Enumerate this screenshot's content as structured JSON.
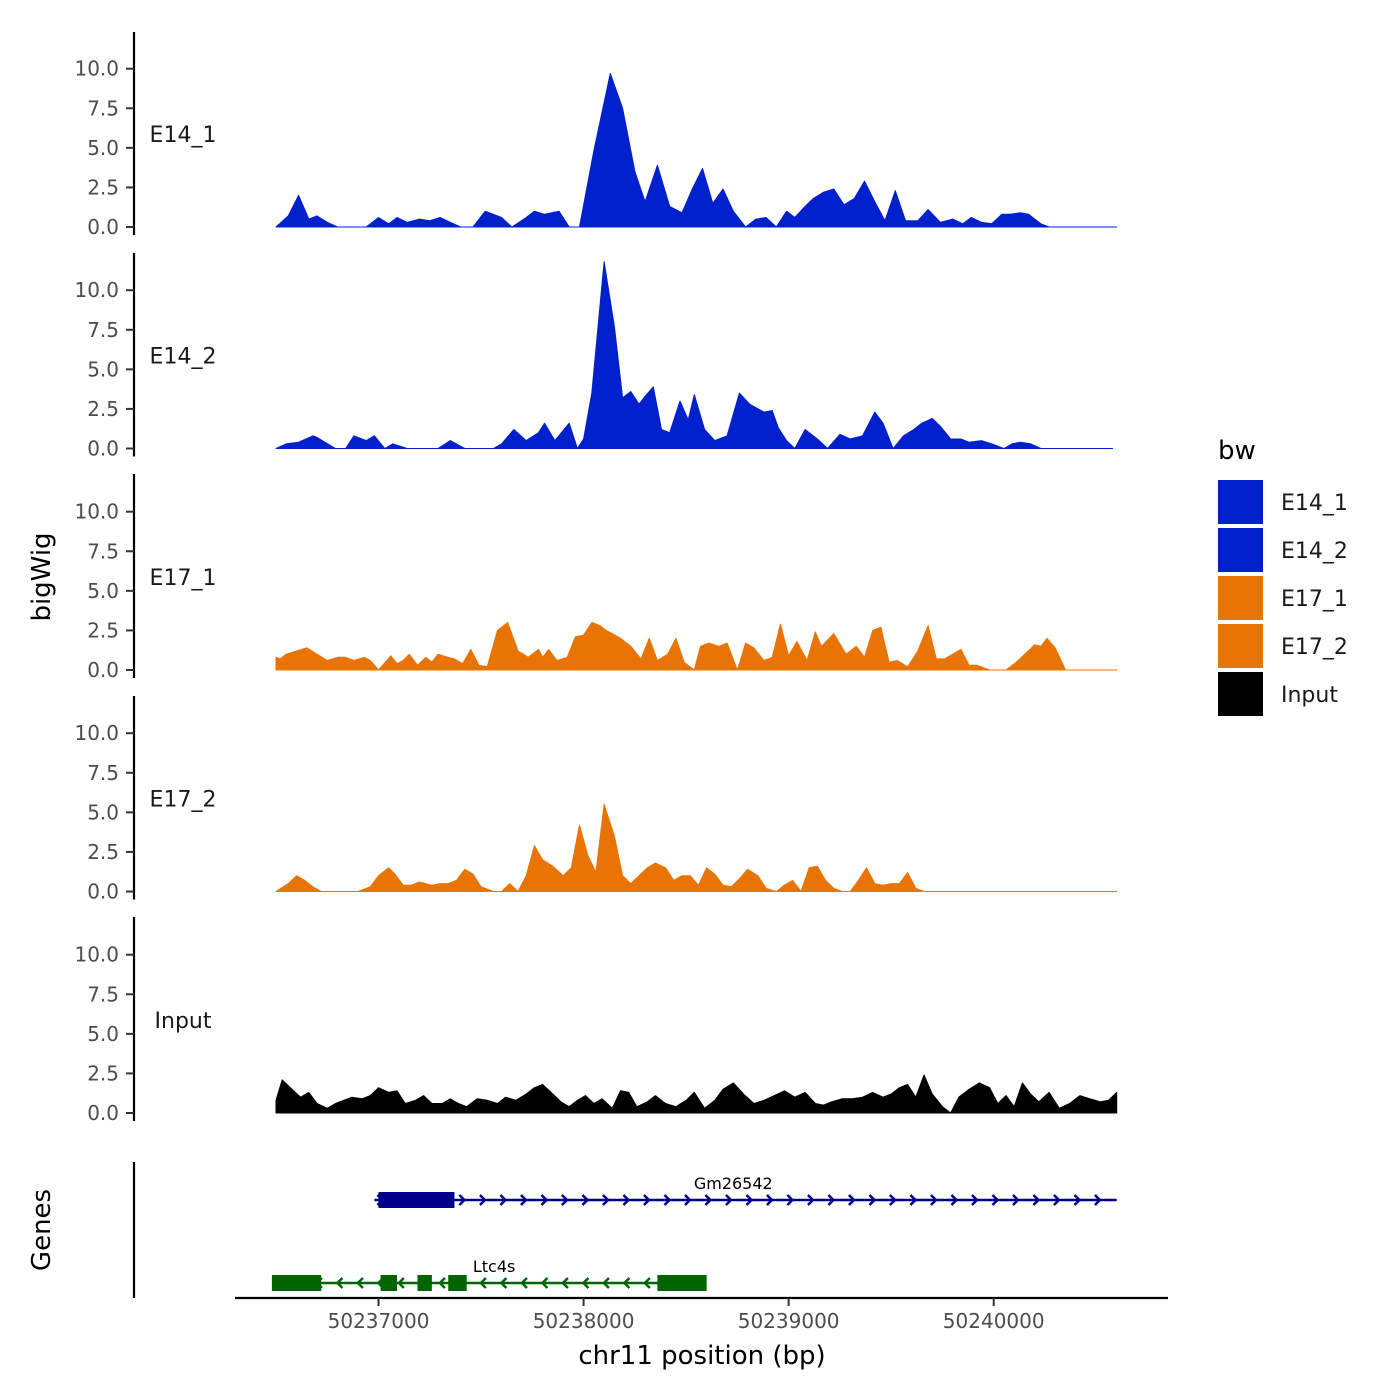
{
  "chart_data": {
    "type": "area",
    "ylabel": "bigWig",
    "xlabel": "chr11 position (bp)",
    "genes_label": "Genes",
    "ylim": [
      0,
      12.4
    ],
    "yticks": [
      {
        "value": 0.0,
        "label": "0.0"
      },
      {
        "value": 2.5,
        "label": "2.5"
      },
      {
        "value": 5.0,
        "label": "5.0"
      },
      {
        "value": 7.5,
        "label": "7.5"
      },
      {
        "value": 10.0,
        "label": "10.0"
      }
    ],
    "xlim": [
      50236300,
      50240850
    ],
    "xticks": [
      {
        "value": 50237000,
        "label": "50237000"
      },
      {
        "value": 50238000,
        "label": "50238000"
      },
      {
        "value": 50239000,
        "label": "50239000"
      },
      {
        "value": 50240000,
        "label": "50240000"
      }
    ],
    "legend": {
      "title": "bw",
      "position": "right",
      "entries": [
        {
          "label": "E14_1",
          "color": "#0020CC"
        },
        {
          "label": "E14_2",
          "color": "#0020CC"
        },
        {
          "label": "E17_1",
          "color": "#E87405"
        },
        {
          "label": "E17_2",
          "color": "#E87405"
        },
        {
          "label": "Input",
          "color": "#000000"
        }
      ]
    },
    "series": [
      {
        "name": "E14_1",
        "color": "#0020CC",
        "x": [
          50236500,
          50236560,
          50236610,
          50236660,
          50236700,
          50236750,
          50236800,
          50236840,
          50236940,
          50237000,
          50237050,
          50237090,
          50237140,
          50237200,
          50237250,
          50237300,
          50237350,
          50237400,
          50237460,
          50237520,
          50237600,
          50237650,
          50237720,
          50237760,
          50237810,
          50237880,
          50237930,
          50237980,
          50238050,
          50238130,
          50238190,
          50238250,
          50238300,
          50238360,
          50238420,
          50238480,
          50238530,
          50238580,
          50238630,
          50238680,
          50238730,
          50238790,
          50238840,
          50238890,
          50238940,
          50238990,
          50239030,
          50239080,
          50239120,
          50239170,
          50239220,
          50239270,
          50239320,
          50239370,
          50239420,
          50239470,
          50239520,
          50239570,
          50239630,
          50239680,
          50239740,
          50239800,
          50239850,
          50239890,
          50239940,
          50239990,
          50240040,
          50240080,
          50240130,
          50240170,
          50240230,
          50240270,
          50240320,
          50240380,
          50240430,
          50240480,
          50240540,
          50240600
        ],
        "y": [
          0.0,
          0.7,
          2.0,
          0.5,
          0.7,
          0.3,
          0.0,
          0.0,
          0.0,
          0.6,
          0.2,
          0.6,
          0.3,
          0.5,
          0.4,
          0.6,
          0.3,
          0.0,
          0.0,
          1.0,
          0.6,
          0.0,
          0.6,
          1.0,
          0.8,
          1.0,
          0.0,
          0.0,
          4.8,
          9.7,
          7.5,
          3.5,
          1.6,
          3.9,
          1.3,
          0.9,
          2.4,
          3.7,
          1.5,
          2.4,
          1.0,
          0.0,
          0.5,
          0.6,
          0.0,
          1.0,
          0.6,
          1.3,
          1.8,
          2.2,
          2.4,
          1.4,
          1.8,
          2.9,
          1.6,
          0.4,
          2.3,
          0.4,
          0.4,
          1.1,
          0.3,
          0.5,
          0.2,
          0.6,
          0.3,
          0.2,
          0.8,
          0.8,
          0.9,
          0.8,
          0.2,
          0.0,
          0.0,
          0.0,
          0.0,
          0.0,
          0.0,
          0.0
        ]
      },
      {
        "name": "E14_2",
        "color": "#0020CC",
        "x": [
          50236500,
          50236550,
          50236610,
          50236680,
          50236700,
          50236790,
          50236840,
          50236880,
          50236940,
          50236980,
          50237030,
          50237070,
          50237140,
          50237230,
          50237290,
          50237350,
          50237420,
          50237500,
          50237560,
          50237600,
          50237660,
          50237720,
          50237780,
          50237810,
          50237860,
          50237930,
          50237970,
          50238000,
          50238040,
          50238100,
          50238150,
          50238190,
          50238230,
          50238270,
          50238300,
          50238340,
          50238380,
          50238420,
          50238470,
          50238510,
          50238540,
          50238590,
          50238640,
          50238700,
          50238760,
          50238810,
          50238880,
          50238920,
          50238950,
          50238990,
          50239030,
          50239080,
          50239140,
          50239190,
          50239250,
          50239300,
          50239360,
          50239420,
          50239460,
          50239510,
          50239560,
          50239610,
          50239650,
          50239700,
          50239740,
          50239790,
          50239840,
          50239880,
          50239940,
          50239990,
          50240050,
          50240090,
          50240130,
          50240180,
          50240230,
          50240270,
          50240320,
          50240390,
          50240440,
          50240500,
          50240540,
          50240580
        ],
        "y": [
          0.0,
          0.3,
          0.4,
          0.8,
          0.7,
          0.0,
          0.0,
          0.8,
          0.5,
          0.8,
          0.0,
          0.3,
          0.0,
          0.0,
          0.0,
          0.5,
          0.0,
          0.0,
          0.0,
          0.3,
          1.2,
          0.5,
          1.0,
          1.6,
          0.5,
          1.6,
          0.0,
          0.6,
          3.5,
          11.8,
          7.7,
          3.2,
          3.6,
          2.8,
          3.3,
          3.9,
          1.2,
          1.0,
          3.0,
          1.8,
          3.4,
          1.2,
          0.5,
          0.8,
          3.5,
          2.8,
          2.3,
          2.4,
          1.3,
          0.5,
          0.0,
          1.2,
          0.6,
          0.0,
          0.9,
          0.6,
          0.8,
          2.3,
          1.6,
          0.0,
          0.8,
          1.2,
          1.6,
          1.9,
          1.4,
          0.6,
          0.6,
          0.4,
          0.5,
          0.3,
          0.0,
          0.3,
          0.4,
          0.3,
          0.0,
          0.0,
          0.0,
          0.0,
          0.0,
          0.0,
          0.0,
          0.0
        ]
      },
      {
        "name": "E17_1",
        "color": "#E87405",
        "x": [
          50236500,
          50236520,
          50236550,
          50236600,
          50236650,
          50236700,
          50236750,
          50236800,
          50236840,
          50236880,
          50236930,
          50236960,
          50237000,
          50237020,
          50237060,
          50237090,
          50237120,
          50237150,
          50237190,
          50237230,
          50237260,
          50237290,
          50237340,
          50237370,
          50237410,
          50237450,
          50237490,
          50237530,
          50237580,
          50237630,
          50237680,
          50237730,
          50237780,
          50237800,
          50237830,
          50237870,
          50237920,
          50237960,
          50238000,
          50238040,
          50238080,
          50238110,
          50238140,
          50238180,
          50238230,
          50238280,
          50238320,
          50238360,
          50238410,
          50238450,
          50238490,
          50238540,
          50238570,
          50238610,
          50238660,
          50238700,
          50238750,
          50238790,
          50238830,
          50238880,
          50238920,
          50238960,
          50239000,
          50239040,
          50239090,
          50239130,
          50239160,
          50239220,
          50239280,
          50239330,
          50239370,
          50239410,
          50239450,
          50239490,
          50239530,
          50239580,
          50239630,
          50239680,
          50239720,
          50239760,
          50239800,
          50239840,
          50239880,
          50239920,
          50239980,
          50240020,
          50240060,
          50240110,
          50240160,
          50240200,
          50240230,
          50240260,
          50240300,
          50240350,
          50240400,
          50240450,
          50240500,
          50240550,
          50240600
        ],
        "y": [
          0.8,
          0.7,
          1.0,
          1.2,
          1.4,
          1.0,
          0.6,
          0.8,
          0.8,
          0.6,
          0.8,
          0.6,
          0.0,
          0.3,
          0.9,
          0.4,
          0.6,
          1.0,
          0.3,
          0.8,
          0.5,
          1.0,
          0.8,
          0.7,
          0.4,
          1.3,
          0.3,
          0.2,
          2.5,
          3.0,
          1.2,
          0.8,
          1.3,
          0.8,
          1.3,
          0.6,
          0.8,
          2.1,
          2.2,
          3.0,
          2.8,
          2.5,
          2.3,
          2.0,
          1.5,
          0.7,
          2.0,
          0.6,
          1.0,
          2.0,
          0.5,
          0.0,
          1.5,
          1.7,
          1.5,
          1.7,
          0.0,
          1.7,
          1.4,
          0.6,
          0.8,
          2.9,
          0.9,
          1.8,
          0.6,
          2.4,
          1.5,
          2.3,
          1.0,
          1.5,
          0.8,
          2.5,
          2.7,
          0.5,
          0.6,
          0.2,
          1.2,
          2.8,
          0.7,
          0.7,
          1.0,
          1.3,
          0.3,
          0.3,
          0.0,
          0.0,
          0.0,
          0.5,
          1.1,
          1.6,
          1.5,
          2.0,
          1.4,
          0.0,
          0.0,
          0.0,
          0.0,
          0.0,
          0.0
        ],
        "y_note": "trailing values approximate"
      },
      {
        "name": "E17_2",
        "color": "#E87405",
        "x": [
          50236500,
          50236560,
          50236600,
          50236640,
          50236680,
          50236720,
          50236760,
          50236800,
          50236900,
          50236960,
          50237000,
          50237050,
          50237080,
          50237120,
          50237160,
          50237200,
          50237260,
          50237300,
          50237340,
          50237380,
          50237420,
          50237460,
          50237500,
          50237560,
          50237600,
          50237640,
          50237680,
          50237720,
          50237760,
          50237800,
          50237850,
          50237900,
          50237940,
          50237980,
          50238020,
          50238060,
          50238100,
          50238150,
          50238190,
          50238230,
          50238270,
          50238310,
          50238350,
          50238400,
          50238440,
          50238480,
          50238520,
          50238560,
          50238600,
          50238640,
          50238680,
          50238720,
          50238760,
          50238800,
          50238850,
          50238890,
          50238940,
          50238980,
          50239020,
          50239060,
          50239100,
          50239140,
          50239180,
          50239220,
          50239260,
          50239300,
          50239340,
          50239380,
          50239420,
          50239460,
          50239500,
          50239540,
          50239580,
          50239620,
          50239660,
          50239700,
          50239740,
          50239780,
          50239820,
          50239860,
          50239900,
          50239940,
          50239980,
          50240020,
          50240060,
          50240100,
          50240140,
          50240180,
          50240220,
          50240260,
          50240300,
          50240340,
          50240380,
          50240420,
          50240460,
          50240500,
          50240540,
          50240600
        ],
        "y": [
          0.0,
          0.5,
          1.0,
          0.7,
          0.3,
          0.0,
          0.0,
          0.0,
          0.0,
          0.3,
          1.0,
          1.5,
          1.1,
          0.4,
          0.4,
          0.6,
          0.4,
          0.5,
          0.5,
          0.7,
          1.4,
          1.1,
          0.3,
          0.0,
          0.0,
          0.5,
          0.0,
          1.0,
          2.9,
          2.0,
          1.6,
          1.0,
          1.5,
          4.2,
          2.3,
          1.2,
          5.5,
          3.5,
          1.0,
          0.5,
          1.0,
          1.5,
          1.8,
          1.5,
          0.7,
          1.0,
          1.0,
          0.4,
          1.5,
          1.1,
          0.4,
          0.3,
          0.8,
          1.4,
          1.0,
          0.2,
          0.0,
          0.4,
          0.7,
          0.0,
          1.5,
          1.6,
          0.7,
          0.2,
          0.0,
          0.0,
          0.7,
          1.5,
          0.5,
          0.4,
          0.5,
          0.5,
          1.2,
          0.2,
          0.0,
          0.0,
          0.0,
          0.0,
          0.0,
          0.0,
          0.0,
          0.0,
          0.0,
          0.0,
          0.0,
          0.0,
          0.0,
          0.0,
          0.0,
          0.0,
          0.0,
          0.0,
          0.0,
          0.0,
          0.0,
          0.0,
          0.0,
          0.0
        ]
      },
      {
        "name": "Input",
        "color": "#000000",
        "x": [
          50236500,
          50236530,
          50236570,
          50236620,
          50236660,
          50236700,
          50236750,
          50236790,
          50236830,
          50236870,
          50236920,
          50236960,
          50237000,
          50237050,
          50237090,
          50237130,
          50237180,
          50237220,
          50237260,
          50237310,
          50237350,
          50237390,
          50237430,
          50237480,
          50237530,
          50237580,
          50237620,
          50237670,
          50237720,
          50237760,
          50237800,
          50237850,
          50237890,
          50237930,
          50237970,
          50238010,
          50238050,
          50238090,
          50238140,
          50238180,
          50238220,
          50238260,
          50238310,
          50238350,
          50238400,
          50238450,
          50238500,
          50238540,
          50238590,
          50238640,
          50238680,
          50238730,
          50238780,
          50238830,
          50238880,
          50238930,
          50238980,
          50239030,
          50239080,
          50239130,
          50239170,
          50239210,
          50239260,
          50239310,
          50239360,
          50239410,
          50239460,
          50239500,
          50239540,
          50239580,
          50239620,
          50239660,
          50239700,
          50239750,
          50239790,
          50239830,
          50239880,
          50239930,
          50239980,
          50240020,
          50240060,
          50240100,
          50240140,
          50240180,
          50240220,
          50240270,
          50240320,
          50240370,
          50240420,
          50240470,
          50240520,
          50240560,
          50240600
        ],
        "y": [
          0.8,
          2.1,
          1.6,
          1.0,
          1.3,
          0.6,
          0.3,
          0.6,
          0.8,
          1.0,
          0.9,
          1.1,
          1.6,
          1.3,
          1.4,
          0.6,
          0.8,
          1.1,
          0.6,
          0.6,
          0.9,
          0.6,
          0.4,
          0.9,
          0.8,
          0.6,
          1.0,
          0.8,
          1.2,
          1.6,
          1.8,
          1.2,
          0.7,
          0.4,
          0.8,
          1.1,
          0.6,
          0.9,
          0.3,
          1.4,
          1.3,
          0.4,
          0.7,
          1.1,
          0.6,
          0.4,
          0.8,
          1.3,
          0.3,
          0.8,
          1.5,
          1.9,
          1.2,
          0.6,
          0.8,
          1.1,
          1.4,
          1.0,
          1.3,
          0.6,
          0.5,
          0.7,
          0.9,
          0.9,
          1.0,
          1.3,
          1.0,
          1.2,
          1.6,
          1.8,
          1.0,
          2.4,
          1.2,
          0.4,
          0.0,
          1.0,
          1.5,
          1.9,
          1.6,
          0.6,
          1.1,
          0.4,
          1.9,
          1.2,
          0.7,
          1.3,
          0.3,
          0.6,
          1.1,
          0.9,
          0.7,
          0.8,
          1.3
        ],
        "y_note": "x extent approximate"
      }
    ],
    "genes": [
      {
        "name": "Gm26542",
        "strand": "+",
        "color": "#00008B",
        "start": 50236980,
        "end": 50240600,
        "exons": [
          [
            50237000,
            50237370
          ]
        ],
        "label_pos": 50238730
      },
      {
        "name": "Ltc4s",
        "strand": "-",
        "color": "#006400",
        "start": 50236480,
        "end": 50238600,
        "exons": [
          [
            50236480,
            50236720
          ],
          [
            50237010,
            50237090
          ],
          [
            50237190,
            50237260
          ],
          [
            50237340,
            50237430
          ],
          [
            50238360,
            50238600
          ]
        ],
        "label_pos": 50237460
      }
    ]
  }
}
